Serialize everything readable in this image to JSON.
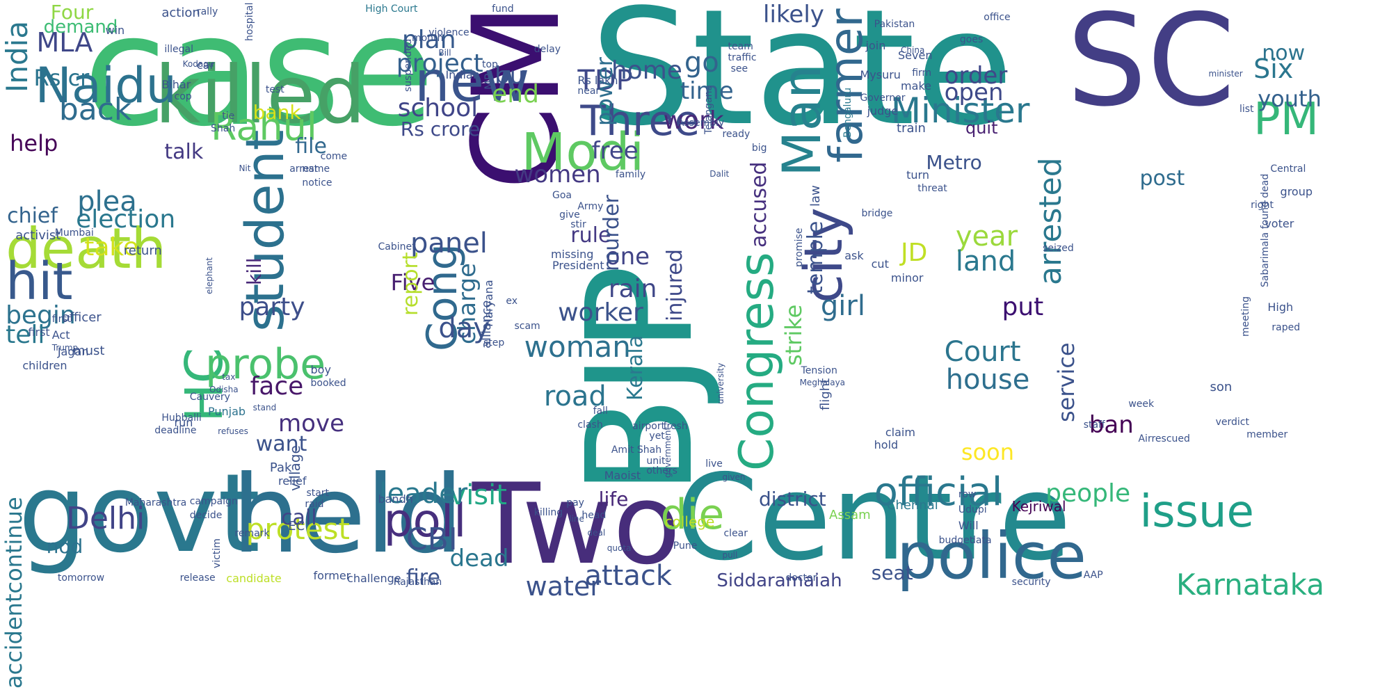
{
  "words": [
    {
      "text": "case",
      "color": "#3fbc73"
    },
    {
      "text": "State",
      "color": "#20928c"
    },
    {
      "text": "SC",
      "color": "#433e85"
    },
    {
      "text": "CM",
      "color": "#3b0f70"
    },
    {
      "text": "BJP",
      "color": "#1f958b"
    },
    {
      "text": "Two",
      "color": "#472d7b"
    },
    {
      "text": "Centre",
      "color": "#23898e"
    },
    {
      "text": "govt",
      "color": "#2a788e"
    },
    {
      "text": "held",
      "color": "#2d708e"
    },
    {
      "text": "killed",
      "color": "#46a166"
    },
    {
      "text": "police",
      "color": "#31688e"
    },
    {
      "text": "Naidu",
      "color": "#2c728e"
    },
    {
      "text": "new",
      "color": "#3a548c"
    },
    {
      "text": "Modi",
      "color": "#5ec962"
    },
    {
      "text": "death",
      "color": "#a5db36"
    },
    {
      "text": "hit",
      "color": "#38598c"
    },
    {
      "text": "student",
      "color": "#2c718e"
    },
    {
      "text": "Rahul",
      "color": "#5ec962"
    },
    {
      "text": "Three",
      "color": "#3e4a89"
    },
    {
      "text": "Man",
      "color": "#26828e"
    },
    {
      "text": "farmer",
      "color": "#31688e"
    },
    {
      "text": "city",
      "color": "#3e4989"
    },
    {
      "text": "Congress",
      "color": "#25ab82"
    },
    {
      "text": "Minister",
      "color": "#2a788e"
    },
    {
      "text": "PM",
      "color": "#35b779"
    },
    {
      "text": "HC",
      "color": "#35b779"
    },
    {
      "text": "Cong",
      "color": "#30698e"
    },
    {
      "text": "probe",
      "color": "#4ac16d"
    },
    {
      "text": "poll",
      "color": "#472f7d"
    },
    {
      "text": "die",
      "color": "#7ad151"
    },
    {
      "text": "issue",
      "color": "#1f9f88"
    },
    {
      "text": "official",
      "color": "#2a788e"
    },
    {
      "text": "Delhi",
      "color": "#414487"
    },
    {
      "text": "protest",
      "color": "#bddf26"
    },
    {
      "text": "CBI",
      "color": "#3b528b"
    },
    {
      "text": "Karnataka",
      "color": "#29af7f"
    },
    {
      "text": "back",
      "color": "#2f6c8e"
    },
    {
      "text": "India",
      "color": "#2a788e"
    },
    {
      "text": "MLA",
      "color": "#3f4788"
    },
    {
      "text": "Four",
      "color": "#8fd744"
    },
    {
      "text": "Rs cr",
      "color": "#2b748e"
    },
    {
      "text": "talk",
      "color": "#443a83"
    },
    {
      "text": "bank",
      "color": "#d8e219"
    },
    {
      "text": "plan",
      "color": "#375a8c"
    },
    {
      "text": "project",
      "color": "#34608d"
    },
    {
      "text": "school",
      "color": "#404588"
    },
    {
      "text": "TDP",
      "color": "#3f4889"
    },
    {
      "text": "end",
      "color": "#7ad151"
    },
    {
      "text": "bu",
      "color": "#3b528b"
    },
    {
      "text": "Rs crore",
      "color": "#3e4989"
    },
    {
      "text": "free",
      "color": "#404688"
    },
    {
      "text": "home",
      "color": "#3b528b"
    },
    {
      "text": "time",
      "color": "#33638d"
    },
    {
      "text": "likely",
      "color": "#3b528b"
    },
    {
      "text": "go",
      "color": "#33638d"
    },
    {
      "text": "order",
      "color": "#3f4889"
    },
    {
      "text": "open",
      "color": "#3e4989"
    },
    {
      "text": "quit",
      "color": "#482071"
    },
    {
      "text": "Six",
      "color": "#2a768e"
    },
    {
      "text": "now",
      "color": "#2c738e"
    },
    {
      "text": "youth",
      "color": "#34618d"
    },
    {
      "text": "work",
      "color": "#482878"
    },
    {
      "text": "power",
      "color": "#2e6e8e"
    },
    {
      "text": "women",
      "color": "#443983"
    },
    {
      "text": "file",
      "color": "#31688e"
    },
    {
      "text": "help",
      "color": "#450457"
    },
    {
      "text": "demand",
      "color": "#3dbc74"
    },
    {
      "text": "chief",
      "color": "#33638d"
    },
    {
      "text": "election",
      "color": "#2a788e"
    },
    {
      "text": "plea",
      "color": "#2d708e"
    },
    {
      "text": "take",
      "color": "#d2e21b"
    },
    {
      "text": "begin",
      "color": "#2c728e"
    },
    {
      "text": "tell",
      "color": "#2a788e"
    },
    {
      "text": "party",
      "color": "#3d4e8a"
    },
    {
      "text": "panel",
      "color": "#3b528b"
    },
    {
      "text": "Five",
      "color": "#482071"
    },
    {
      "text": "charge",
      "color": "#2f6c8e"
    },
    {
      "text": "day",
      "color": "#3b528b"
    },
    {
      "text": "report",
      "color": "#b5de2b"
    },
    {
      "text": "rule",
      "color": "#443983"
    },
    {
      "text": "one",
      "color": "#414487"
    },
    {
      "text": "rain",
      "color": "#3f4788"
    },
    {
      "text": "worker",
      "color": "#3b528b"
    },
    {
      "text": "woman",
      "color": "#2d708e"
    },
    {
      "text": "road",
      "color": "#2b748e"
    },
    {
      "text": "murder",
      "color": "#3b528b"
    },
    {
      "text": "injured",
      "color": "#3e4989"
    },
    {
      "text": "Kerala",
      "color": "#2a788e"
    },
    {
      "text": "accused",
      "color": "#46307e"
    },
    {
      "text": "temple",
      "color": "#3b528b"
    },
    {
      "text": "JD",
      "color": "#c0df25"
    },
    {
      "text": "strike",
      "color": "#5ec962"
    },
    {
      "text": "girl",
      "color": "#2f6c8e"
    },
    {
      "text": "year",
      "color": "#9bd93c"
    },
    {
      "text": "land",
      "color": "#2a788e"
    },
    {
      "text": "arrested",
      "color": "#2a788e"
    },
    {
      "text": "put",
      "color": "#3b0f70"
    },
    {
      "text": "Court",
      "color": "#2b758e"
    },
    {
      "text": "house",
      "color": "#2e6f8e"
    },
    {
      "text": "service",
      "color": "#3b528b"
    },
    {
      "text": "face",
      "color": "#481769"
    },
    {
      "text": "move",
      "color": "#46307e"
    },
    {
      "text": "want",
      "color": "#3b528b"
    },
    {
      "text": "call",
      "color": "#404588"
    },
    {
      "text": "visit",
      "color": "#22a785"
    },
    {
      "text": "leader",
      "color": "#2a788e"
    },
    {
      "text": "fire",
      "color": "#3b528b"
    },
    {
      "text": "dead",
      "color": "#2a768e"
    },
    {
      "text": "water",
      "color": "#3b528b"
    },
    {
      "text": "attack",
      "color": "#3b528b"
    },
    {
      "text": "life",
      "color": "#482878"
    },
    {
      "text": "district",
      "color": "#3b528b"
    },
    {
      "text": "soon",
      "color": "#fde725"
    },
    {
      "text": "people",
      "color": "#35b779"
    },
    {
      "text": "ban",
      "color": "#440154"
    },
    {
      "text": "accidentcontinue",
      "color": "#2a788e"
    },
    {
      "text": "nod",
      "color": "#2c728e"
    },
    {
      "text": "Siddaramaiah",
      "color": "#414487"
    },
    {
      "text": "seat",
      "color": "#3b528b"
    },
    {
      "text": "Metro",
      "color": "#3b528b"
    },
    {
      "text": "post",
      "color": "#2f6c8e"
    },
    {
      "text": "kill",
      "color": "#482878"
    },
    {
      "text": "High Court",
      "color": "#2a788e"
    },
    {
      "text": "violence",
      "color": "#3b528b"
    },
    {
      "text": "Mysuru",
      "color": "#3b528b"
    },
    {
      "text": "Bengaluru",
      "color": "#2a788e"
    },
    {
      "text": "Assam",
      "color": "#7ad151"
    },
    {
      "text": "Chennai",
      "color": "#2a788e"
    },
    {
      "text": "Kejriwal",
      "color": "#440154"
    },
    {
      "text": "college",
      "color": "#bddf26"
    },
    {
      "text": "Punjab",
      "color": "#2c728e"
    },
    {
      "text": "Cauvery",
      "color": "#3b528b"
    },
    {
      "text": "Maoist",
      "color": "#3b528b"
    },
    {
      "text": "village",
      "color": "#3b528b"
    },
    {
      "text": "candidate",
      "color": "#bddf26"
    },
    {
      "text": "former",
      "color": "#3b528b"
    },
    {
      "text": "challenge",
      "color": "#3b528b"
    },
    {
      "text": "Rajasthan",
      "color": "#3b528b"
    },
    {
      "text": "tomorrow",
      "color": "#3b528b"
    },
    {
      "text": "release",
      "color": "#3b528b"
    },
    {
      "text": "doctor",
      "color": "#3b528b"
    },
    {
      "text": "security",
      "color": "#3b528b"
    },
    {
      "text": "AAP",
      "color": "#3b528b"
    },
    {
      "text": "Mumbai",
      "color": "#3b528b"
    },
    {
      "text": "activist",
      "color": "#3b528b"
    },
    {
      "text": "officer",
      "color": "#3b528b"
    },
    {
      "text": "first",
      "color": "#3b528b"
    },
    {
      "text": "must",
      "color": "#3b528b"
    },
    {
      "text": "children",
      "color": "#3b528b"
    },
    {
      "text": "boy",
      "color": "#3b528b"
    },
    {
      "text": "booked",
      "color": "#3b528b"
    },
    {
      "text": "run",
      "color": "#3b528b"
    },
    {
      "text": "return",
      "color": "#3b528b"
    },
    {
      "text": "action",
      "color": "#3b528b"
    },
    {
      "text": "rally",
      "color": "#3b528b"
    },
    {
      "text": "win",
      "color": "#3b528b"
    },
    {
      "text": "illegal",
      "color": "#3b528b"
    },
    {
      "text": "Bihar",
      "color": "#3b528b"
    },
    {
      "text": "cop",
      "color": "#3b528b"
    },
    {
      "text": "car",
      "color": "#3b528b"
    },
    {
      "text": "tie",
      "color": "#3b528b"
    },
    {
      "text": "Shah",
      "color": "#3b528b"
    },
    {
      "text": "notice",
      "color": "#3b528b"
    },
    {
      "text": "arrest",
      "color": "#3b528b"
    },
    {
      "text": "come",
      "color": "#3b528b"
    },
    {
      "text": "name",
      "color": "#3b528b"
    },
    {
      "text": "Goa",
      "color": "#3b528b"
    },
    {
      "text": "Army",
      "color": "#3b528b"
    },
    {
      "text": "family",
      "color": "#3b528b"
    },
    {
      "text": "Assembly",
      "color": "#3b528b"
    },
    {
      "text": "ready",
      "color": "#3b528b"
    },
    {
      "text": "big",
      "color": "#3b528b"
    },
    {
      "text": "judge",
      "color": "#3b528b"
    },
    {
      "text": "Governor",
      "color": "#3b528b"
    },
    {
      "text": "train",
      "color": "#3b528b"
    },
    {
      "text": "make",
      "color": "#3b528b"
    },
    {
      "text": "turn",
      "color": "#3b528b"
    },
    {
      "text": "threat",
      "color": "#3b528b"
    },
    {
      "text": "bridge",
      "color": "#3b528b"
    },
    {
      "text": "ask",
      "color": "#3b528b"
    },
    {
      "text": "cut",
      "color": "#3b528b"
    },
    {
      "text": "minor",
      "color": "#3b528b"
    },
    {
      "text": "seized",
      "color": "#3b528b"
    },
    {
      "text": "right",
      "color": "#3b528b"
    },
    {
      "text": "group",
      "color": "#3b528b"
    },
    {
      "text": "voter",
      "color": "#3b528b"
    },
    {
      "text": "staff",
      "color": "#3b528b"
    },
    {
      "text": "son",
      "color": "#3b528b"
    },
    {
      "text": "month",
      "color": "#3b528b"
    },
    {
      "text": "suspended",
      "color": "#3b528b"
    },
    {
      "text": "Indian",
      "color": "#3b528b"
    },
    {
      "text": "MP",
      "color": "#3b528b"
    },
    {
      "text": "hospital",
      "color": "#3b528b"
    },
    {
      "text": "test",
      "color": "#3b528b"
    },
    {
      "text": "top",
      "color": "#3b528b"
    },
    {
      "text": "delay",
      "color": "#3b528b"
    },
    {
      "text": "team",
      "color": "#3b528b"
    },
    {
      "text": "traffic",
      "color": "#3b528b"
    },
    {
      "text": "see",
      "color": "#3b528b"
    },
    {
      "text": "join",
      "color": "#3b528b"
    },
    {
      "text": "office",
      "color": "#3b528b"
    },
    {
      "text": "goes",
      "color": "#3b528b"
    },
    {
      "text": "Telangana",
      "color": "#3b528b"
    },
    {
      "text": "near",
      "color": "#3b528b"
    },
    {
      "text": "Rs lakh",
      "color": "#3b528b"
    },
    {
      "text": "give",
      "color": "#3b528b"
    },
    {
      "text": "stir",
      "color": "#3b528b"
    },
    {
      "text": "missing",
      "color": "#3b528b"
    },
    {
      "text": "President",
      "color": "#3b528b"
    },
    {
      "text": "law",
      "color": "#3b528b"
    },
    {
      "text": "promise",
      "color": "#3b528b"
    },
    {
      "text": "flight",
      "color": "#3b528b"
    },
    {
      "text": "hold",
      "color": "#3b528b"
    },
    {
      "text": "claim",
      "color": "#3b528b"
    },
    {
      "text": "Will",
      "color": "#3b528b"
    },
    {
      "text": "Udupi",
      "color": "#3b528b"
    },
    {
      "text": "budget",
      "color": "#3b528b"
    },
    {
      "text": "Pune",
      "color": "#3b528b"
    },
    {
      "text": "head",
      "color": "#3b528b"
    },
    {
      "text": "relief",
      "color": "#3b528b"
    },
    {
      "text": "Pak",
      "color": "#3b528b"
    },
    {
      "text": "start",
      "color": "#3b528b"
    },
    {
      "text": "raid",
      "color": "#3b528b"
    },
    {
      "text": "EC",
      "color": "#3b528b"
    },
    {
      "text": "bandh",
      "color": "#3b528b"
    },
    {
      "text": "killing",
      "color": "#3b528b"
    },
    {
      "text": "decide",
      "color": "#3b528b"
    },
    {
      "text": "campaign",
      "color": "#3b528b"
    },
    {
      "text": "remark",
      "color": "#3b528b"
    },
    {
      "text": "victim",
      "color": "#3b528b"
    },
    {
      "text": "Maharashtra",
      "color": "#3b528b"
    },
    {
      "text": "Jagan",
      "color": "#3b528b"
    },
    {
      "text": "Act",
      "color": "#3b528b"
    },
    {
      "text": "Trump",
      "color": "#3b528b"
    },
    {
      "text": "elephant",
      "color": "#3b528b"
    },
    {
      "text": "Cabinet",
      "color": "#3b528b"
    },
    {
      "text": "alliance",
      "color": "#3b528b"
    },
    {
      "text": "Haryana",
      "color": "#3b528b"
    },
    {
      "text": "ex",
      "color": "#3b528b"
    },
    {
      "text": "scam",
      "color": "#3b528b"
    },
    {
      "text": "step",
      "color": "#3b528b"
    },
    {
      "text": "fall",
      "color": "#3b528b"
    },
    {
      "text": "clash",
      "color": "#3b528b"
    },
    {
      "text": "airport",
      "color": "#3b528b"
    },
    {
      "text": "yet",
      "color": "#3b528b"
    },
    {
      "text": "Amit Shah",
      "color": "#3b528b"
    },
    {
      "text": "unit",
      "color": "#3b528b"
    },
    {
      "text": "others",
      "color": "#3b528b"
    },
    {
      "text": "fresh",
      "color": "#3b528b"
    },
    {
      "text": "government",
      "color": "#3b528b"
    },
    {
      "text": "university",
      "color": "#3b528b"
    },
    {
      "text": "Tension",
      "color": "#3b528b"
    },
    {
      "text": "Meghalaya",
      "color": "#3b528b"
    },
    {
      "text": "week",
      "color": "#3b528b"
    },
    {
      "text": "member",
      "color": "#3b528b"
    },
    {
      "text": "Airrescued",
      "color": "#3b528b"
    },
    {
      "text": "verdict",
      "color": "#3b528b"
    },
    {
      "text": "High",
      "color": "#3b528b"
    },
    {
      "text": "meeting",
      "color": "#3b528b"
    },
    {
      "text": "raped",
      "color": "#3b528b"
    },
    {
      "text": "Sabarimala found dead",
      "color": "#3b528b"
    },
    {
      "text": "deadline",
      "color": "#3b528b"
    },
    {
      "text": "Hubballi",
      "color": "#3b528b"
    },
    {
      "text": "refuses",
      "color": "#3b528b"
    },
    {
      "text": "stand",
      "color": "#3b528b"
    },
    {
      "text": "Odisha",
      "color": "#3b528b"
    },
    {
      "text": "tax",
      "color": "#3b528b"
    },
    {
      "text": "Kodagu",
      "color": "#3b528b"
    },
    {
      "text": "Nit",
      "color": "#3b528b"
    },
    {
      "text": "Dalit",
      "color": "#3b528b"
    },
    {
      "text": "Pakistan",
      "color": "#3b528b"
    },
    {
      "text": "Seven",
      "color": "#3b528b"
    },
    {
      "text": "firm",
      "color": "#3b528b"
    },
    {
      "text": "China",
      "color": "#3b528b"
    },
    {
      "text": "Bill",
      "color": "#3b528b"
    },
    {
      "text": "fund",
      "color": "#3b528b"
    },
    {
      "text": "pay",
      "color": "#3b528b"
    },
    {
      "text": "line",
      "color": "#3b528b"
    },
    {
      "text": "deal",
      "color": "#3b528b"
    },
    {
      "text": "quota",
      "color": "#3b528b"
    },
    {
      "text": "clear",
      "color": "#3b528b"
    },
    {
      "text": "pull",
      "color": "#3b528b"
    },
    {
      "text": "given",
      "color": "#3b528b"
    },
    {
      "text": "live",
      "color": "#3b528b"
    },
    {
      "text": "data",
      "color": "#3b528b"
    },
    {
      "text": "row",
      "color": "#3b528b"
    },
    {
      "text": "first",
      "color": "#3b528b"
    },
    {
      "text": "Central",
      "color": "#3b528b"
    },
    {
      "text": "list",
      "color": "#3b528b"
    },
    {
      "text": "minister",
      "color": "#3b528b"
    }
  ]
}
